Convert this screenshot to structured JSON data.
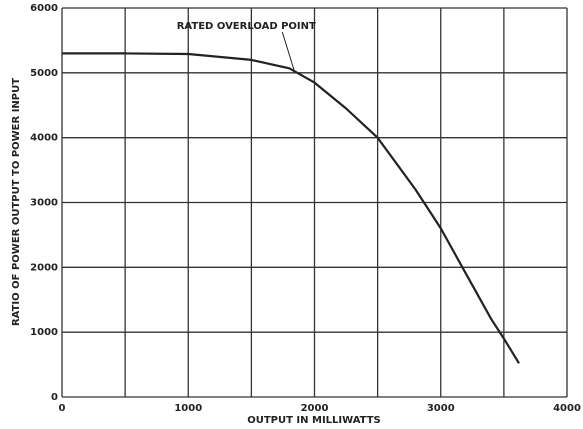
{
  "chart_data": {
    "type": "line",
    "x_label": "OUTPUT IN MILLIWATTS",
    "y_label": "RATIO OF POWER OUTPUT TO POWER INPUT",
    "x": [
      0,
      500,
      1000,
      1500,
      1800,
      2000,
      2250,
      2500,
      2800,
      3000,
      3200,
      3400,
      3500,
      3620
    ],
    "series": [
      {
        "name": "ratio",
        "color": "#222222",
        "values": [
          5300,
          5300,
          5290,
          5200,
          5070,
          4850,
          4450,
          4000,
          3200,
          2600,
          1900,
          1200,
          900,
          520
        ]
      }
    ],
    "annotations": [
      {
        "text": "RATED OVERLOAD POINT",
        "x": 1840,
        "y": 5030
      }
    ],
    "xlim": [
      0,
      4000
    ],
    "xticks": [
      0,
      1000,
      2000,
      3000,
      4000
    ],
    "x_gridlines": [
      500,
      1500,
      2500,
      3500
    ],
    "ylim": [
      0,
      6000
    ],
    "yticks": [
      0,
      1000,
      2000,
      3000,
      4000,
      5000,
      6000
    ],
    "grid": true
  }
}
